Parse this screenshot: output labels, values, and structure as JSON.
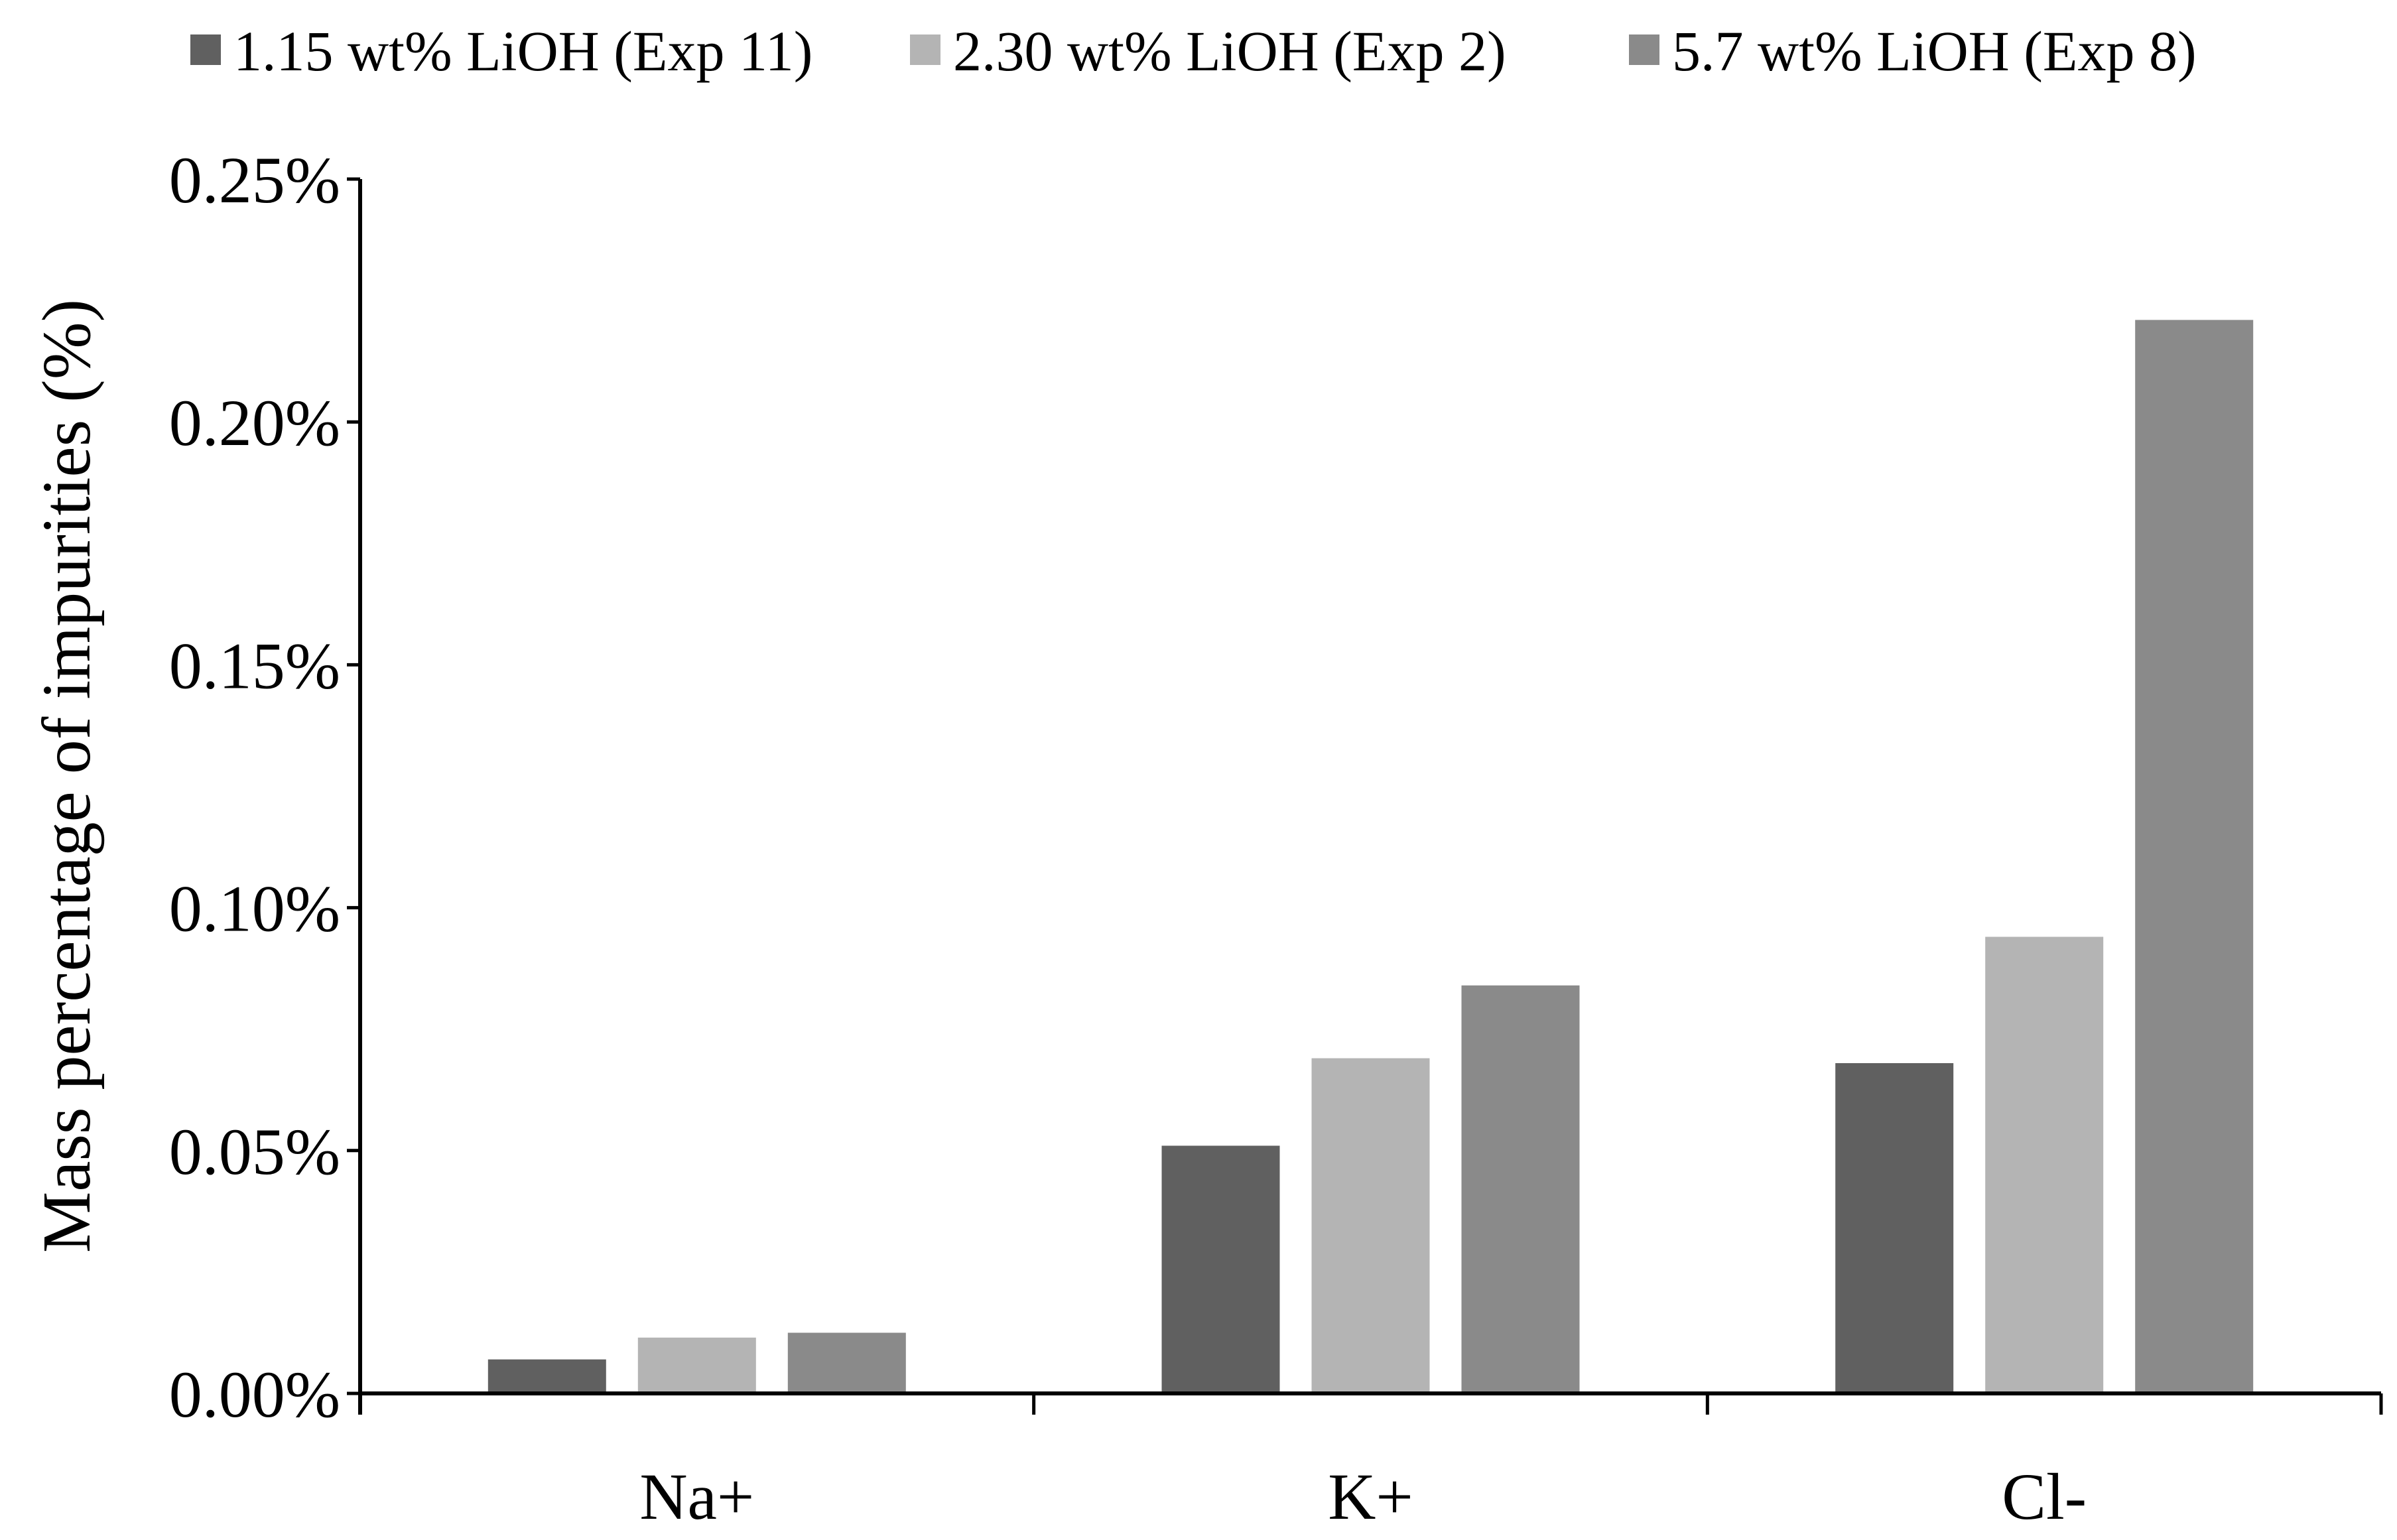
{
  "chart_data": {
    "type": "bar",
    "title": "",
    "xlabel": "",
    "ylabel": "Mass percentage of impurities (%)",
    "categories": [
      "Na+",
      "K+",
      "Cl-"
    ],
    "series": [
      {
        "name": "1.15 wt% LiOH (Exp 11)",
        "color": "#606060",
        "values": [
          0.007,
          0.051,
          0.068
        ]
      },
      {
        "name": "2.30 wt% LiOH (Exp 2)",
        "color": "#b4b4b4",
        "values": [
          0.0115,
          0.069,
          0.094
        ]
      },
      {
        "name": "5.7 wt% LiOH (Exp 8)",
        "color": "#8a8a8a",
        "values": [
          0.0125,
          0.084,
          0.221
        ]
      }
    ],
    "ylim": [
      0,
      0.25
    ],
    "yticks": [
      0,
      0.05,
      0.1,
      0.15,
      0.2,
      0.25
    ],
    "ytick_labels": [
      "0.00%",
      "0.05%",
      "0.10%",
      "0.15%",
      "0.20%",
      "0.25%"
    ],
    "grid": false,
    "legend_position": "top"
  }
}
